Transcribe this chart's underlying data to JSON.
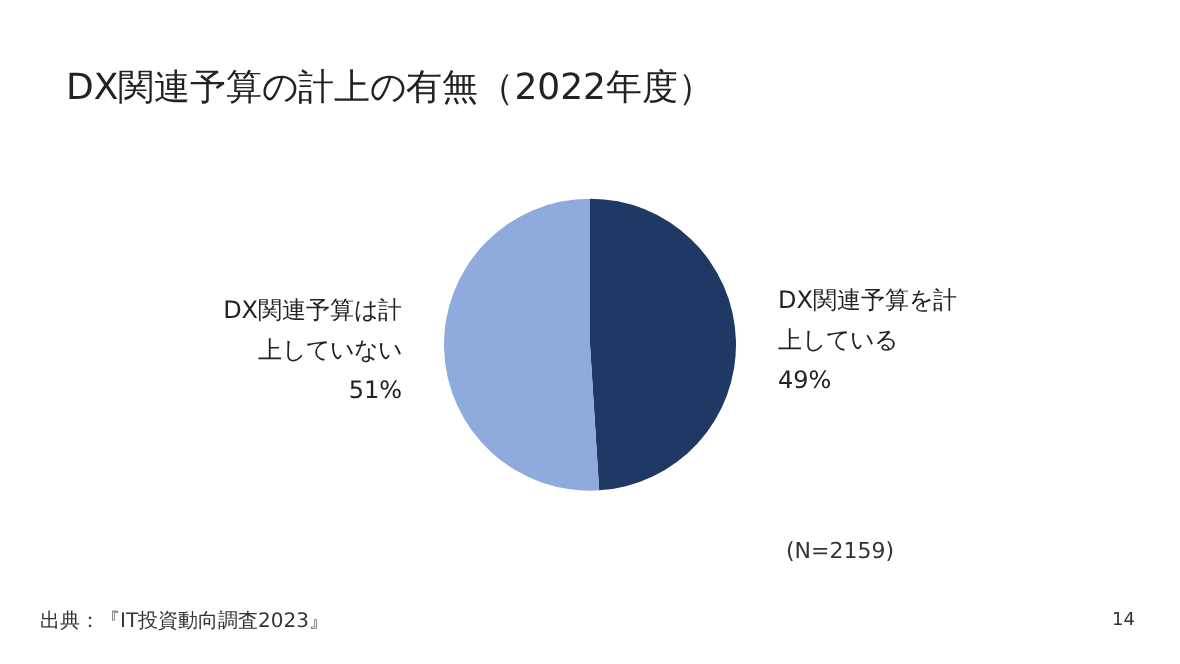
{
  "chart_data": {
    "type": "pie",
    "title": "DX関連予算の計上の有無（2022年度）",
    "categories": [
      "DX関連予算を計上している",
      "DX関連予算は計上していない"
    ],
    "values": [
      49,
      51
    ],
    "colors": [
      "#1f3864",
      "#8faadc"
    ],
    "value_labels": [
      "49%",
      "51%"
    ],
    "legend": false,
    "annotations": [
      "(N=2159)",
      "出典：『IT投資動向調査2023』",
      "14"
    ]
  }
}
